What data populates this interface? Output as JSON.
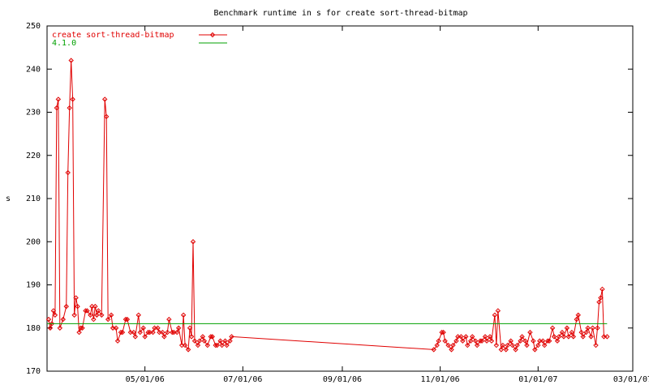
{
  "chart_data": {
    "type": "line",
    "title": "Benchmark runtime in s for create sort-thread-bitmap",
    "y_label": "s",
    "xlim": [
      "2006-03-01",
      "2007-03-01"
    ],
    "xticks": [
      {
        "value": "2006-05-01",
        "label": "05/01/06"
      },
      {
        "value": "2006-07-01",
        "label": "07/01/06"
      },
      {
        "value": "2006-09-01",
        "label": "09/01/06"
      },
      {
        "value": "2006-11-01",
        "label": "11/01/06"
      },
      {
        "value": "2007-01-01",
        "label": "01/01/07"
      },
      {
        "value": "2007-03-01",
        "label": "03/01/07"
      }
    ],
    "ylim": [
      170,
      250
    ],
    "yticks": [
      170,
      180,
      190,
      200,
      210,
      220,
      230,
      240,
      250
    ],
    "legend": "top-left",
    "series": [
      {
        "name": "create sort-thread-bitmap",
        "color": "#e00000",
        "marker": true,
        "x": [
          "2006-03-02",
          "2006-03-03",
          "2006-03-04",
          "2006-03-05",
          "2006-03-06",
          "2006-03-07",
          "2006-03-08",
          "2006-03-09",
          "2006-03-11",
          "2006-03-13",
          "2006-03-14",
          "2006-03-15",
          "2006-03-16",
          "2006-03-17",
          "2006-03-18",
          "2006-03-19",
          "2006-03-20",
          "2006-03-21",
          "2006-03-22",
          "2006-03-23",
          "2006-03-25",
          "2006-03-26",
          "2006-03-28",
          "2006-03-29",
          "2006-03-30",
          "2006-03-31",
          "2006-04-01",
          "2006-04-02",
          "2006-04-04",
          "2006-04-06",
          "2006-04-07",
          "2006-04-08",
          "2006-04-10",
          "2006-04-11",
          "2006-04-13",
          "2006-04-14",
          "2006-04-16",
          "2006-04-17",
          "2006-04-19",
          "2006-04-20",
          "2006-04-22",
          "2006-04-24",
          "2006-04-25",
          "2006-04-27",
          "2006-04-28",
          "2006-04-30",
          "2006-05-01",
          "2006-05-03",
          "2006-05-04",
          "2006-05-06",
          "2006-05-07",
          "2006-05-09",
          "2006-05-10",
          "2006-05-12",
          "2006-05-13",
          "2006-05-15",
          "2006-05-16",
          "2006-05-18",
          "2006-05-19",
          "2006-05-21",
          "2006-05-22",
          "2006-05-24",
          "2006-05-25",
          "2006-05-26",
          "2006-05-28",
          "2006-05-29",
          "2006-05-30",
          "2006-05-31",
          "2006-06-01",
          "2006-06-03",
          "2006-06-04",
          "2006-06-06",
          "2006-06-07",
          "2006-06-09",
          "2006-06-11",
          "2006-06-12",
          "2006-06-14",
          "2006-06-15",
          "2006-06-17",
          "2006-06-18",
          "2006-06-20",
          "2006-06-21",
          "2006-06-23",
          "2006-06-24",
          "2006-10-28",
          "2006-10-30",
          "2006-10-31",
          "2006-11-02",
          "2006-11-03",
          "2006-11-04",
          "2006-11-06",
          "2006-11-08",
          "2006-11-09",
          "2006-11-11",
          "2006-11-12",
          "2006-11-14",
          "2006-11-15",
          "2006-11-17",
          "2006-11-18",
          "2006-11-20",
          "2006-11-21",
          "2006-11-23",
          "2006-11-24",
          "2006-11-26",
          "2006-11-27",
          "2006-11-29",
          "2006-11-30",
          "2006-12-02",
          "2006-12-03",
          "2006-12-05",
          "2006-12-06",
          "2006-12-07",
          "2006-12-09",
          "2006-12-10",
          "2006-12-12",
          "2006-12-13",
          "2006-12-15",
          "2006-12-16",
          "2006-12-18",
          "2006-12-19",
          "2006-12-21",
          "2006-12-22",
          "2006-12-24",
          "2006-12-25",
          "2006-12-27",
          "2006-12-29",
          "2006-12-30",
          "2007-01-01",
          "2007-01-02",
          "2007-01-04",
          "2007-01-05",
          "2007-01-07",
          "2007-01-08",
          "2007-01-10",
          "2007-01-11",
          "2007-01-13",
          "2007-01-14",
          "2007-01-16",
          "2007-01-17",
          "2007-01-19",
          "2007-01-20",
          "2007-01-22",
          "2007-01-23",
          "2007-01-25",
          "2007-01-26",
          "2007-01-28",
          "2007-01-29",
          "2007-01-31",
          "2007-02-01",
          "2007-02-03",
          "2007-02-04",
          "2007-02-06",
          "2007-02-07",
          "2007-02-08",
          "2007-02-09",
          "2007-02-10",
          "2007-02-11",
          "2007-02-13"
        ],
        "values": [
          182,
          180,
          181,
          184,
          183,
          231,
          233,
          180,
          182,
          185,
          216,
          231,
          242,
          233,
          183,
          187,
          185,
          179,
          180,
          180,
          184,
          184,
          183,
          185,
          182,
          185,
          183,
          184,
          183,
          233,
          229,
          182,
          183,
          180,
          180,
          177,
          179,
          179,
          182,
          182,
          179,
          179,
          178,
          183,
          179,
          180,
          178,
          179,
          179,
          179,
          180,
          180,
          179,
          179,
          178,
          179,
          182,
          179,
          179,
          179,
          180,
          176,
          183,
          176,
          175,
          180,
          178,
          200,
          177,
          176,
          177,
          178,
          177,
          176,
          178,
          178,
          176,
          176,
          177,
          176,
          177,
          176,
          177,
          178,
          175,
          176,
          177,
          179,
          179,
          177,
          176,
          175,
          176,
          177,
          178,
          178,
          177,
          178,
          176,
          177,
          178,
          177,
          176,
          177,
          177,
          178,
          177,
          178,
          177,
          183,
          176,
          184,
          175,
          176,
          175,
          176,
          177,
          176,
          175,
          176,
          177,
          178,
          177,
          176,
          179,
          177,
          175,
          176,
          177,
          177,
          176,
          177,
          177,
          180,
          178,
          177,
          178,
          179,
          178,
          180,
          178,
          179,
          178,
          182,
          183,
          179,
          178,
          179,
          180,
          178,
          180,
          176,
          180,
          186,
          187,
          189,
          178,
          178
        ]
      },
      {
        "name": "4.1.0",
        "color": "#00a000",
        "marker": false,
        "x": [
          "2006-03-01",
          "2007-02-13"
        ],
        "values": [
          181,
          181
        ]
      }
    ]
  }
}
